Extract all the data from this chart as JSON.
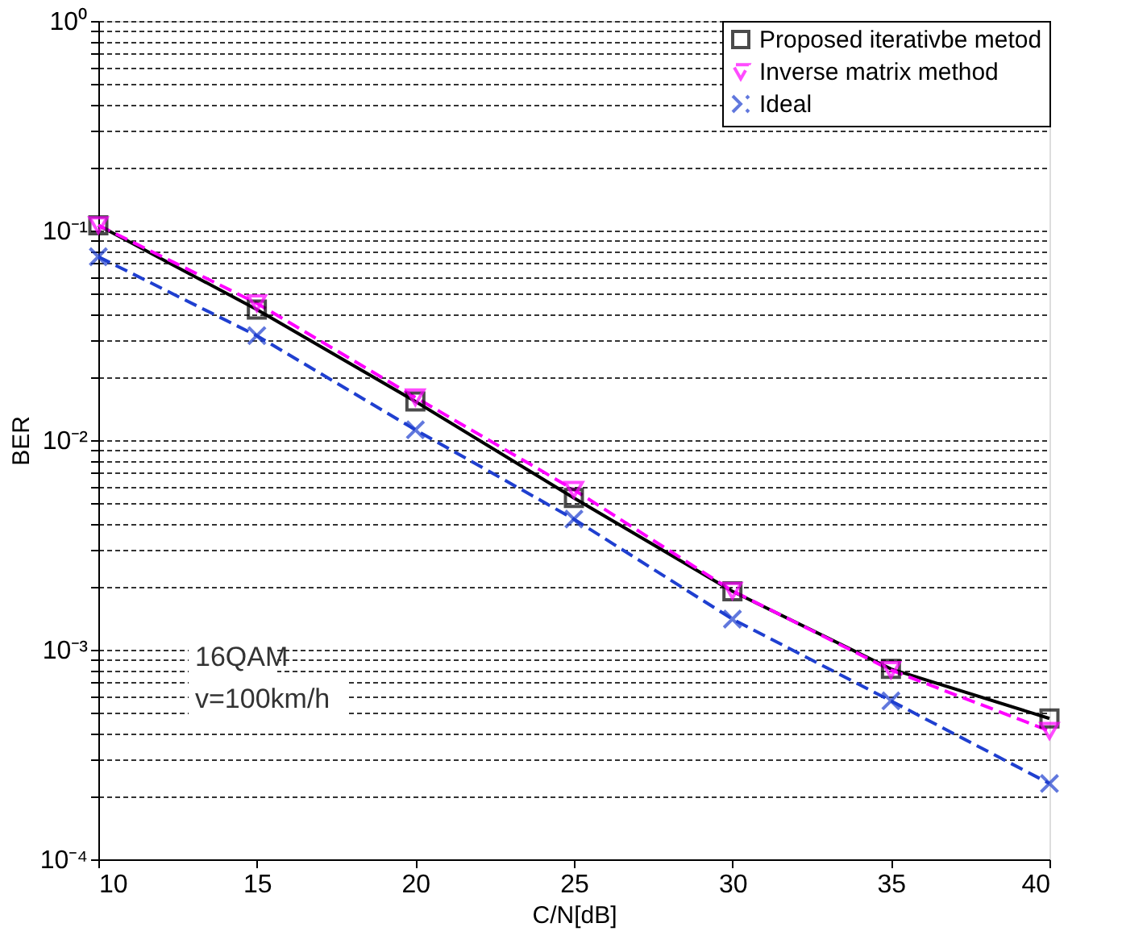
{
  "chart_data": {
    "type": "line",
    "xlabel": "C/N[dB]",
    "ylabel": "BER",
    "log": "y",
    "grid": "y",
    "legend": "top right",
    "x": [
      10,
      15,
      20,
      25,
      30,
      35,
      40
    ],
    "xlim": [
      10,
      40
    ],
    "xticks": [
      10,
      15,
      20,
      25,
      30,
      35,
      40
    ],
    "ylim": [
      0.0001,
      1
    ],
    "yticks": [
      {
        "value": 1,
        "label": "10⁰"
      },
      {
        "value": 0.9,
        "label": null
      },
      {
        "value": 0.8,
        "label": null
      },
      {
        "value": 0.7,
        "label": null
      },
      {
        "value": 0.6,
        "label": null
      },
      {
        "value": 0.5,
        "label": null
      },
      {
        "value": 0.4,
        "label": null
      },
      {
        "value": 0.3,
        "label": null
      },
      {
        "value": 0.2,
        "label": null
      },
      {
        "value": 0.1,
        "label": "10⁻¹"
      },
      {
        "value": 0.09,
        "label": null
      },
      {
        "value": 0.08,
        "label": null
      },
      {
        "value": 0.07,
        "label": null
      },
      {
        "value": 0.06,
        "label": null
      },
      {
        "value": 0.05,
        "label": null
      },
      {
        "value": 0.04,
        "label": null
      },
      {
        "value": 0.03,
        "label": null
      },
      {
        "value": 0.02,
        "label": null
      },
      {
        "value": 0.01,
        "label": "10⁻²"
      },
      {
        "value": 0.009,
        "label": null
      },
      {
        "value": 0.008,
        "label": null
      },
      {
        "value": 0.007,
        "label": null
      },
      {
        "value": 0.006,
        "label": null
      },
      {
        "value": 0.005,
        "label": null
      },
      {
        "value": 0.004,
        "label": null
      },
      {
        "value": 0.003,
        "label": null
      },
      {
        "value": 0.002,
        "label": null
      },
      {
        "value": 0.001,
        "label": "10⁻³"
      },
      {
        "value": 0.0009,
        "label": null
      },
      {
        "value": 0.0008,
        "label": null
      },
      {
        "value": 0.0007,
        "label": null
      },
      {
        "value": 0.0006,
        "label": null
      },
      {
        "value": 0.0005,
        "label": null
      },
      {
        "value": 0.0004,
        "label": null
      },
      {
        "value": 0.0003,
        "label": null
      },
      {
        "value": 0.0002,
        "label": null
      },
      {
        "value": 0.0001,
        "label": "10⁻⁴"
      }
    ],
    "annotations": [
      "16QAM",
      "v=100km/h"
    ],
    "series": [
      {
        "name": "Proposed iterativbe metod",
        "color": "#000000",
        "marker": "square",
        "line_style": "solid",
        "values": [
          0.106,
          0.042,
          0.0153,
          0.0053,
          0.0019,
          0.00081,
          0.00047
        ]
      },
      {
        "name": "Inverse matrix method",
        "color": "#ff00ff",
        "marker": "triangle",
        "line_style": "dashed",
        "values": [
          0.106,
          0.045,
          0.016,
          0.0058,
          0.00191,
          0.0008,
          0.00041
        ]
      },
      {
        "name": "Ideal",
        "color": "#1f3fd0",
        "marker": "cross",
        "line_style": "dashed",
        "values": [
          0.075,
          0.0315,
          0.0112,
          0.0042,
          0.0014,
          0.00057,
          0.00023
        ]
      }
    ]
  }
}
